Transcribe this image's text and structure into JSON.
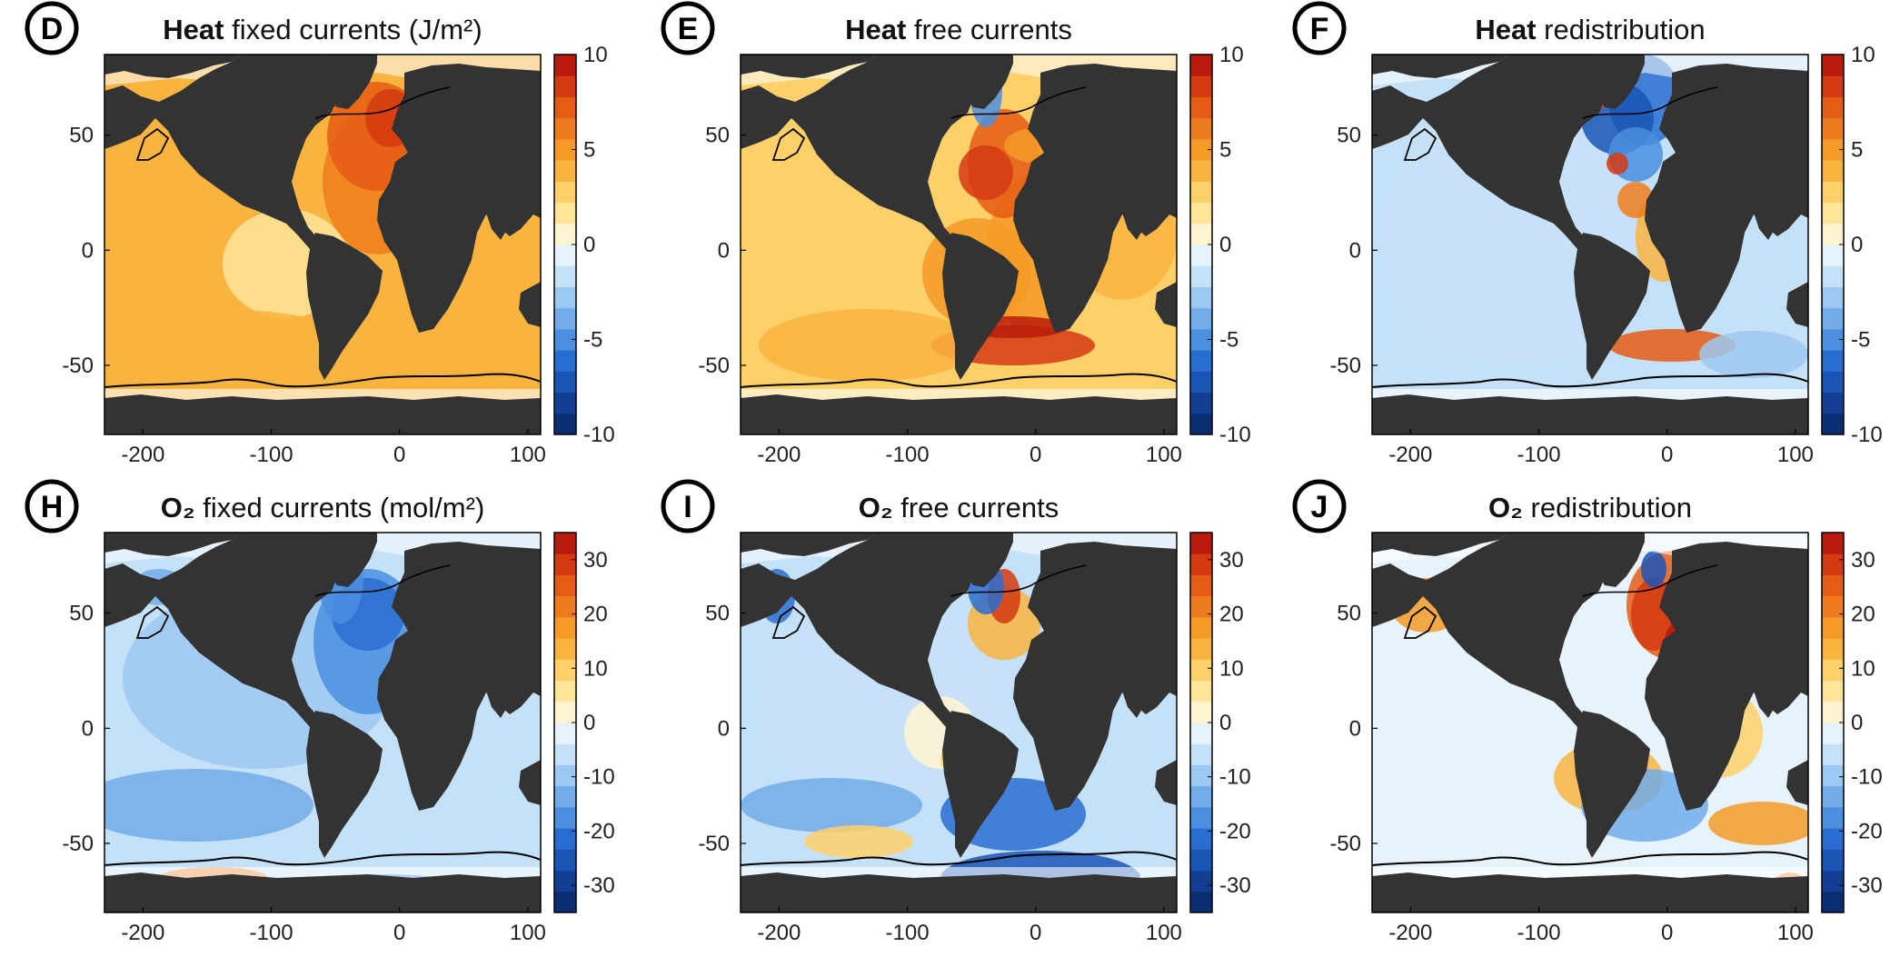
{
  "figure": {
    "panels_order": [
      "D",
      "E",
      "F",
      "H",
      "I",
      "J"
    ]
  },
  "colors": {
    "land": "#333333",
    "ocean_base_heat": "#f2f7fb",
    "frame": "#000000"
  },
  "chart_data": [
    {
      "type": "heatmap",
      "panel": "D",
      "title_bold": "Heat",
      "title_rest": " fixed currents (J/m²)",
      "xlim": [
        -230,
        110
      ],
      "ylim": [
        -80,
        85
      ],
      "xticks": [
        -200,
        -100,
        0,
        100
      ],
      "xtick_labels": [
        "-200",
        "-100",
        "0",
        "100"
      ],
      "yticks": [
        50,
        0,
        -50
      ],
      "ytick_labels": [
        "50",
        "0",
        "-50"
      ],
      "colorbar": {
        "min": -10,
        "max": 10,
        "ticks": [
          10,
          5,
          0,
          -5,
          -10
        ],
        "tick_labels": [
          "10",
          "5",
          "0",
          "-5",
          "-10"
        ]
      },
      "field": "heat_fixed"
    },
    {
      "type": "heatmap",
      "panel": "E",
      "title_bold": "Heat",
      "title_rest": " free currents",
      "xlim": [
        -230,
        110
      ],
      "ylim": [
        -80,
        85
      ],
      "xticks": [
        -200,
        -100,
        0,
        100
      ],
      "xtick_labels": [
        "-200",
        "-100",
        "0",
        "100"
      ],
      "yticks": [
        50,
        0,
        -50
      ],
      "ytick_labels": [
        "50",
        "0",
        "-50"
      ],
      "colorbar": {
        "min": -10,
        "max": 10,
        "ticks": [
          10,
          5,
          0,
          -5,
          -10
        ],
        "tick_labels": [
          "10",
          "5",
          "0",
          "-5",
          "-10"
        ]
      },
      "field": "heat_free"
    },
    {
      "type": "heatmap",
      "panel": "F",
      "title_bold": "Heat",
      "title_rest": " redistribution",
      "xlim": [
        -230,
        110
      ],
      "ylim": [
        -80,
        85
      ],
      "xticks": [
        -200,
        -100,
        0,
        100
      ],
      "xtick_labels": [
        "-200",
        "-100",
        "0",
        "100"
      ],
      "yticks": [
        50,
        0,
        -50
      ],
      "ytick_labels": [
        "50",
        "0",
        "-50"
      ],
      "colorbar": {
        "min": -10,
        "max": 10,
        "ticks": [
          10,
          5,
          0,
          -5,
          -10
        ],
        "tick_labels": [
          "10",
          "5",
          "0",
          "-5",
          "-10"
        ]
      },
      "field": "heat_redist"
    },
    {
      "type": "heatmap",
      "panel": "H",
      "title_bold": "O₂",
      "title_rest": " fixed currents (mol/m²)",
      "xlim": [
        -230,
        110
      ],
      "ylim": [
        -80,
        85
      ],
      "xticks": [
        -200,
        -100,
        0,
        100
      ],
      "xtick_labels": [
        "-200",
        "-100",
        "0",
        "100"
      ],
      "yticks": [
        50,
        0,
        -50
      ],
      "ytick_labels": [
        "50",
        "0",
        "-50"
      ],
      "colorbar": {
        "min": -35,
        "max": 35,
        "ticks": [
          30,
          20,
          10,
          0,
          -10,
          -20,
          -30
        ],
        "tick_labels": [
          "30",
          "20",
          "10",
          "0",
          "-10",
          "-20",
          "-30"
        ]
      },
      "field": "o2_fixed"
    },
    {
      "type": "heatmap",
      "panel": "I",
      "title_bold": "O₂",
      "title_rest": " free currents",
      "xlim": [
        -230,
        110
      ],
      "ylim": [
        -80,
        85
      ],
      "xticks": [
        -200,
        -100,
        0,
        100
      ],
      "xtick_labels": [
        "-200",
        "-100",
        "0",
        "100"
      ],
      "yticks": [
        50,
        0,
        -50
      ],
      "ytick_labels": [
        "50",
        "0",
        "-50"
      ],
      "colorbar": {
        "min": -35,
        "max": 35,
        "ticks": [
          30,
          20,
          10,
          0,
          -10,
          -20,
          -30
        ],
        "tick_labels": [
          "30",
          "20",
          "10",
          "0",
          "-10",
          "-20",
          "-30"
        ]
      },
      "field": "o2_free"
    },
    {
      "type": "heatmap",
      "panel": "J",
      "title_bold": "O₂",
      "title_rest": " redistribution",
      "xlim": [
        -230,
        110
      ],
      "ylim": [
        -80,
        85
      ],
      "xticks": [
        -200,
        -100,
        0,
        100
      ],
      "xtick_labels": [
        "-200",
        "-100",
        "0",
        "100"
      ],
      "yticks": [
        50,
        0,
        -50
      ],
      "ytick_labels": [
        "50",
        "0",
        "-50"
      ],
      "colorbar": {
        "min": -35,
        "max": 35,
        "ticks": [
          30,
          20,
          10,
          0,
          -10,
          -20,
          -30
        ],
        "tick_labels": [
          "30",
          "20",
          "10",
          "0",
          "-10",
          "-20",
          "-30"
        ]
      },
      "field": "o2_redist"
    }
  ]
}
